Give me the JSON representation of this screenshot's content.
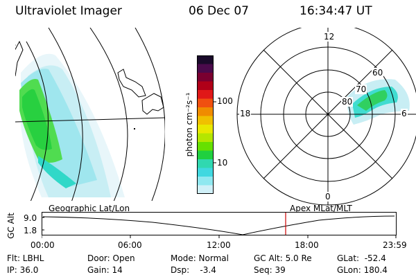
{
  "header": {
    "instrument": "Ultraviolet Imager",
    "date": "06 Dec 07",
    "time": "16:34:47 UT"
  },
  "colorbar": {
    "unit_label": "photon cm⁻²s⁻¹",
    "ticks": [
      "100",
      "10"
    ],
    "colors": [
      "#1a0a2a",
      "#4b0a4b",
      "#7a0030",
      "#b00018",
      "#e01818",
      "#f05010",
      "#f08c00",
      "#f0c000",
      "#e8e800",
      "#b4e600",
      "#66e000",
      "#20d040",
      "#30d8b0",
      "#40d8e0",
      "#90e8f0",
      "#d0f0f8"
    ]
  },
  "polar": {
    "clock_labels": {
      "top": "12",
      "left": "18",
      "right": "6",
      "bottom": "0"
    },
    "lat_labels": [
      "60",
      "70",
      "80"
    ]
  },
  "timeline": {
    "label_left": "Geographic Lat/Lon",
    "label_right": "Apex MLat/MLT",
    "axis_title": "GC Alt",
    "y_ticks": [
      "9.0",
      "1.8"
    ],
    "x_ticks": [
      "00:00",
      "06:00",
      "12:00",
      "18:00",
      "23:59"
    ],
    "marker_color": "#cc0000"
  },
  "info": {
    "filter": "Flt: LBHL",
    "ip": "IP: 36.0",
    "door": "Door: Open",
    "gain": "Gain: 14",
    "mode": "Mode: Normal",
    "dsp": "Dsp:    -3.4",
    "gc_alt": "GC Alt: 5.0 Re",
    "seq": "Seq: 39",
    "glat": "GLat:  -52.4",
    "glon": "GLon: 180.4"
  }
}
